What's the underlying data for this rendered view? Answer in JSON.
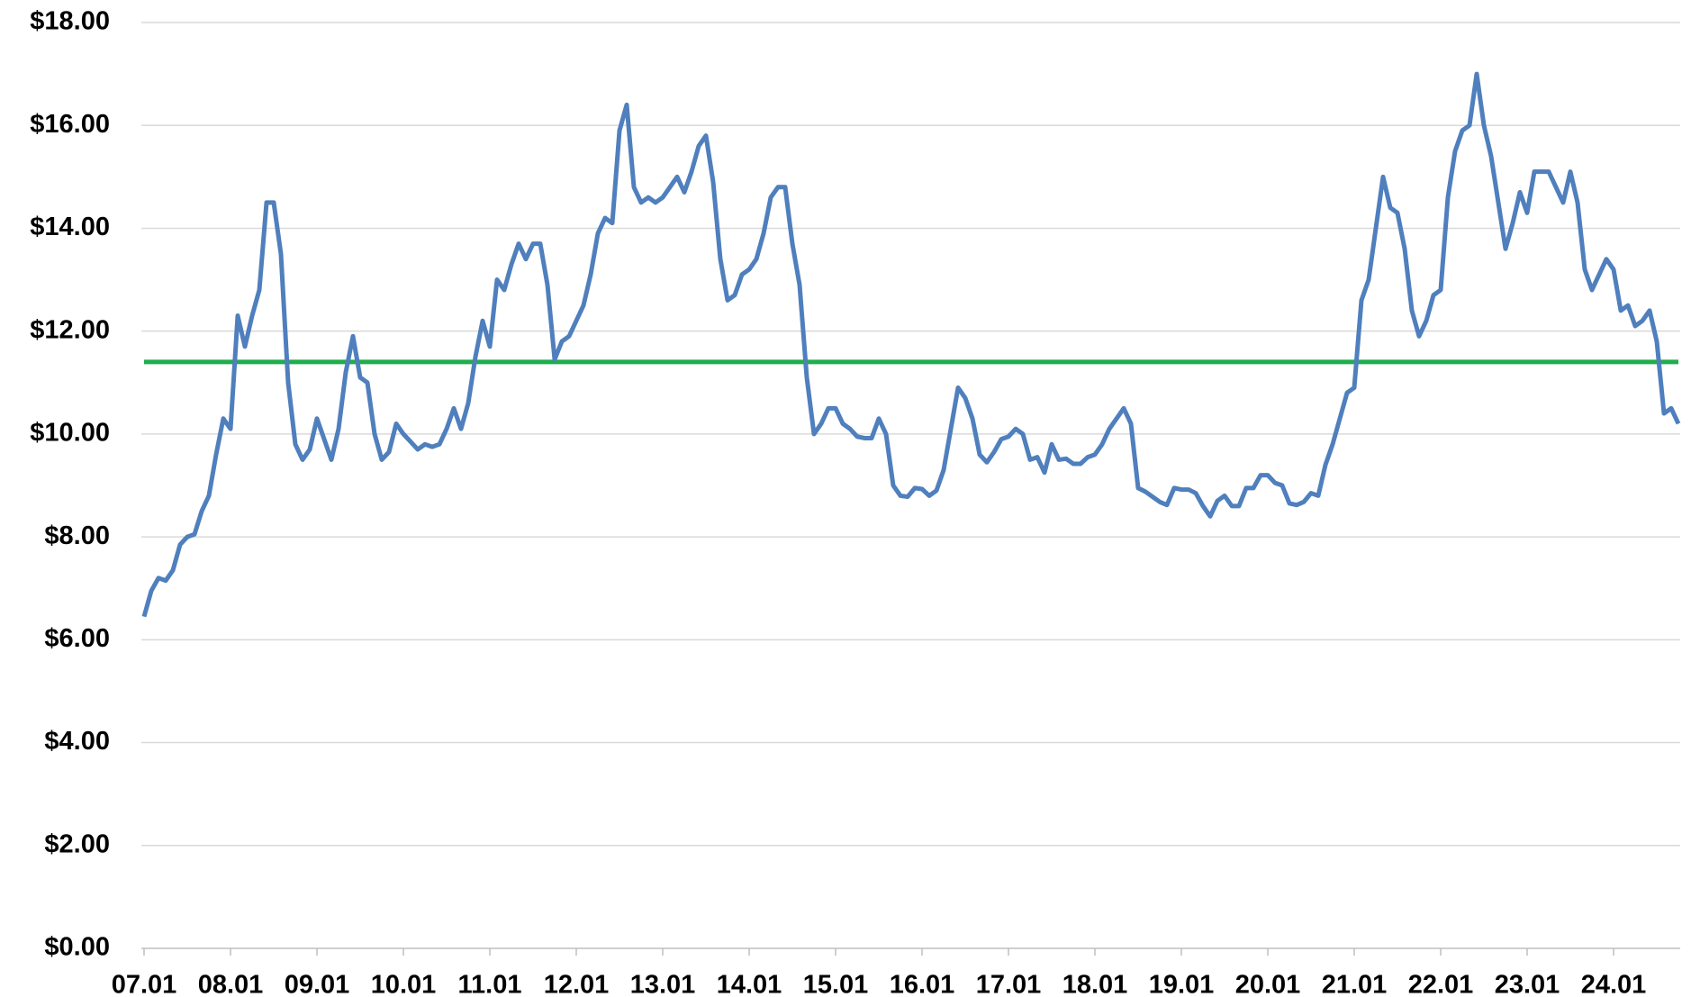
{
  "chart_data": {
    "type": "line",
    "categories": [
      "07.01",
      null,
      null,
      null,
      null,
      null,
      null,
      null,
      null,
      null,
      null,
      null,
      "08.01",
      null,
      null,
      null,
      null,
      null,
      null,
      null,
      null,
      null,
      null,
      null,
      "09.01",
      null,
      null,
      null,
      null,
      null,
      null,
      null,
      null,
      null,
      null,
      null,
      "10.01",
      null,
      null,
      null,
      null,
      null,
      null,
      null,
      null,
      null,
      null,
      null,
      "11.01",
      null,
      null,
      null,
      null,
      null,
      null,
      null,
      null,
      null,
      null,
      null,
      "12.01",
      null,
      null,
      null,
      null,
      null,
      null,
      null,
      null,
      null,
      null,
      null,
      "13.01",
      null,
      null,
      null,
      null,
      null,
      null,
      null,
      null,
      null,
      null,
      null,
      "14.01",
      null,
      null,
      null,
      null,
      null,
      null,
      null,
      null,
      null,
      null,
      null,
      "15.01",
      null,
      null,
      null,
      null,
      null,
      null,
      null,
      null,
      null,
      null,
      null,
      "16.01",
      null,
      null,
      null,
      null,
      null,
      null,
      null,
      null,
      null,
      null,
      null,
      "17.01",
      null,
      null,
      null,
      null,
      null,
      null,
      null,
      null,
      null,
      null,
      null,
      "18.01",
      null,
      null,
      null,
      null,
      null,
      null,
      null,
      null,
      null,
      null,
      null,
      "19.01",
      null,
      null,
      null,
      null,
      null,
      null,
      null,
      null,
      null,
      null,
      null,
      "20.01",
      null,
      null,
      null,
      null,
      null,
      null,
      null,
      null,
      null,
      null,
      null,
      "21.01",
      null,
      null,
      null,
      null,
      null,
      null,
      null,
      null,
      null,
      null,
      null,
      "22.01",
      null,
      null,
      null,
      null,
      null,
      null,
      null,
      null,
      null,
      null,
      null,
      "23.01",
      null,
      null,
      null,
      null,
      null,
      null,
      null,
      null,
      null,
      null,
      null,
      "24.01",
      null,
      null,
      null,
      null,
      null,
      null,
      null,
      null,
      null
    ],
    "series": [
      {
        "color": "#4f7fbd",
        "values": [
          6.45,
          6.95,
          7.2,
          7.15,
          7.35,
          7.85,
          8.0,
          8.05,
          8.5,
          8.8,
          9.6,
          10.3,
          10.1,
          12.3,
          11.7,
          12.3,
          12.8,
          14.5,
          14.5,
          13.5,
          11.0,
          9.8,
          9.5,
          9.7,
          10.3,
          9.9,
          9.5,
          10.1,
          11.2,
          11.9,
          11.1,
          11.0,
          10.0,
          9.5,
          9.65,
          10.2,
          10.0,
          9.85,
          9.7,
          9.8,
          9.75,
          9.8,
          10.1,
          10.5,
          10.1,
          10.6,
          11.5,
          12.2,
          11.7,
          13.0,
          12.8,
          13.3,
          13.7,
          13.4,
          13.7,
          13.7,
          12.9,
          11.45,
          11.8,
          11.9,
          12.2,
          12.5,
          13.1,
          13.9,
          14.2,
          14.1,
          15.9,
          16.4,
          14.8,
          14.5,
          14.6,
          14.5,
          14.6,
          14.8,
          15.0,
          14.7,
          15.1,
          15.6,
          15.8,
          14.9,
          13.4,
          12.6,
          12.7,
          13.1,
          13.2,
          13.4,
          13.9,
          14.6,
          14.8,
          14.8,
          13.7,
          12.9,
          11.1,
          10.0,
          10.2,
          10.5,
          10.5,
          10.2,
          10.1,
          9.95,
          9.92,
          9.92,
          10.3,
          10.0,
          9.0,
          8.8,
          8.78,
          8.95,
          8.93,
          8.8,
          8.9,
          9.3,
          10.1,
          10.9,
          10.7,
          10.3,
          9.6,
          9.45,
          9.65,
          9.9,
          9.95,
          10.1,
          10.0,
          9.5,
          9.55,
          9.25,
          9.8,
          9.5,
          9.52,
          9.42,
          9.42,
          9.55,
          9.6,
          9.8,
          10.1,
          10.3,
          10.5,
          10.2,
          8.95,
          8.88,
          8.78,
          8.68,
          8.62,
          8.95,
          8.92,
          8.92,
          8.85,
          8.6,
          8.4,
          8.7,
          8.8,
          8.6,
          8.6,
          8.95,
          8.95,
          9.2,
          9.2,
          9.05,
          9.0,
          8.65,
          8.62,
          8.68,
          8.85,
          8.8,
          9.4,
          9.8,
          10.3,
          10.8,
          10.9,
          12.6,
          13.0,
          14.0,
          15.0,
          14.4,
          14.3,
          13.6,
          12.4,
          11.9,
          12.2,
          12.7,
          12.8,
          14.6,
          15.5,
          15.9,
          16.0,
          17.0,
          16.0,
          15.4,
          14.5,
          13.6,
          14.1,
          14.7,
          14.3,
          15.1,
          15.1,
          15.1,
          14.8,
          14.5,
          15.1,
          14.5,
          13.2,
          12.8,
          13.1,
          13.4,
          13.2,
          12.4,
          12.5,
          12.1,
          12.2,
          12.4,
          11.8,
          10.4,
          10.5,
          10.2
        ]
      }
    ],
    "reference_line": 11.4,
    "reference_color": "#1fae4b",
    "ylim": [
      0,
      18
    ],
    "yticks": [
      {
        "value": 0,
        "label": "$0.00"
      },
      {
        "value": 2,
        "label": "$2.00"
      },
      {
        "value": 4,
        "label": "$4.00"
      },
      {
        "value": 6,
        "label": "$6.00"
      },
      {
        "value": 8,
        "label": "$8.00"
      },
      {
        "value": 10,
        "label": "$10.00"
      },
      {
        "value": 12,
        "label": "$12.00"
      },
      {
        "value": 14,
        "label": "$14.00"
      },
      {
        "value": 16,
        "label": "$16.00"
      },
      {
        "value": 18,
        "label": "$18.00"
      }
    ],
    "grid": true
  }
}
